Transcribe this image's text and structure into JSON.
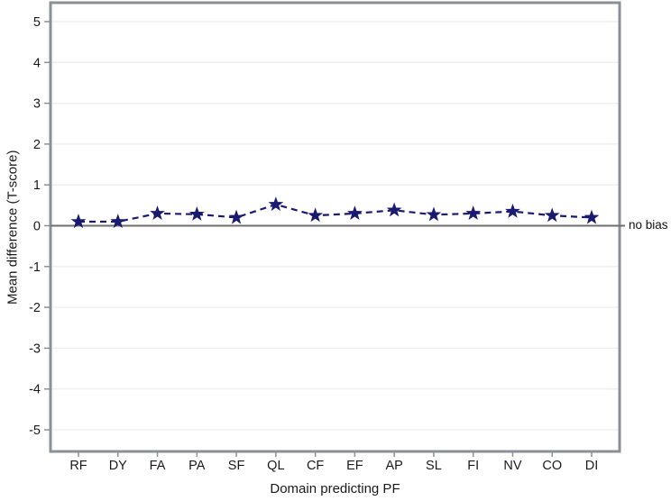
{
  "chart_data": {
    "type": "line",
    "categories": [
      "RF",
      "DY",
      "FA",
      "PA",
      "SF",
      "QL",
      "CF",
      "EF",
      "AP",
      "SL",
      "FI",
      "NV",
      "CO",
      "DI"
    ],
    "series": [
      {
        "name": "mean-difference",
        "values": [
          0.1,
          0.1,
          0.3,
          0.28,
          0.2,
          0.52,
          0.25,
          0.3,
          0.38,
          0.27,
          0.3,
          0.35,
          0.25,
          0.2
        ],
        "marker": "star",
        "line_style": "dashed",
        "color": "#1a1a70"
      }
    ],
    "xlabel": "Domain predicting PF",
    "ylabel": "Mean difference (T-score)",
    "ylim": [
      -5.5,
      5.5
    ],
    "yticks": [
      5,
      4,
      3,
      2,
      1,
      0,
      -1,
      -2,
      -3,
      -4,
      -5
    ],
    "grid": "horizontal",
    "legend": "none",
    "reference_line": {
      "y": 0,
      "label": "no bias"
    },
    "colors": {
      "series": "#1a1a70",
      "reference_line": "#6f6f6f",
      "gridline": "#eeeeee",
      "plot_border": "#8a9096",
      "tick": "#8a9096",
      "text": "#1a1a1a",
      "background": "#ffffff"
    }
  }
}
